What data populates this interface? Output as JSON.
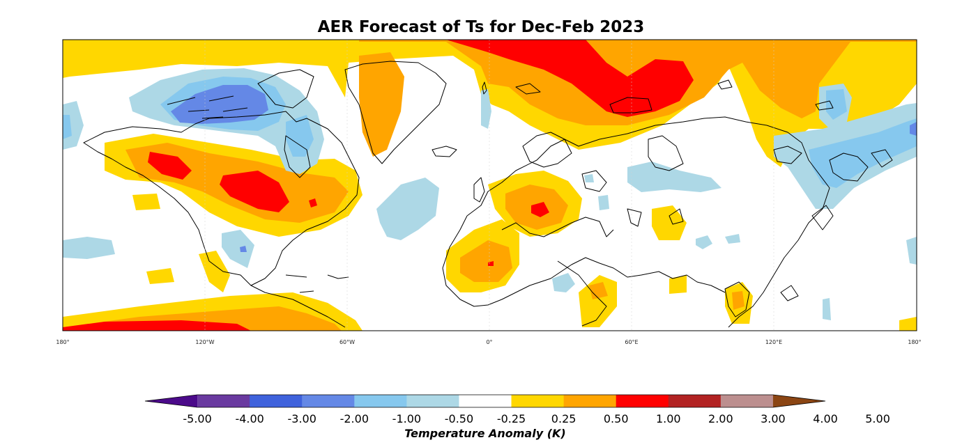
{
  "title": "AER Forecast of Ts for Dec-Feb 2023",
  "map": {
    "projection": "equirectangular",
    "extent_lon": [
      -180,
      180
    ],
    "variable": "Ts",
    "longitude_labels": [
      "180°",
      "120°W",
      "60°W",
      "0°",
      "60°E",
      "120°E",
      "180°"
    ]
  },
  "colorbar": {
    "title": "Temperature Anomaly (K)",
    "tick_labels": [
      "-5.00",
      "-4.00",
      "-3.00",
      "-2.00",
      "-1.00",
      "-0.50",
      "-0.25",
      "0.25",
      "0.50",
      "1.00",
      "2.00",
      "3.00",
      "4.00",
      "5.00"
    ],
    "colors": [
      "#4b0a8a",
      "#6a3aa0",
      "#3f62dc",
      "#6488e6",
      "#86c8ee",
      "#add8e6",
      "#ffffff",
      "#ffd700",
      "#ffa500",
      "#ff0000",
      "#b22222",
      "#bc8f8f",
      "#8b4513"
    ]
  }
}
